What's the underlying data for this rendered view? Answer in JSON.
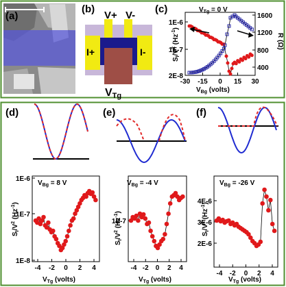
{
  "panels": {
    "a": {
      "label": "(a)"
    },
    "b": {
      "label": "(b)",
      "v_plus": "V+",
      "v_minus": "V-",
      "i_plus": "I+",
      "i_minus": "I-",
      "v_tg": "V",
      "v_tg_sub": "Tg"
    },
    "c": {
      "label": "(c)",
      "annotation": "V",
      "annotation_sub": "Tg",
      "annotation_tail": " = 0 V",
      "ylabel_left": "S",
      "ylabel_right": "R (Ω)",
      "xlabel": "V",
      "xlabel_sub": "Bg",
      "xlabel_tail": " (volts)",
      "left_ticks": [
        "1E-6",
        "1E-7",
        "2E-8"
      ],
      "right_ticks": [
        "1600",
        "1200",
        "800",
        "400"
      ],
      "x_ticks": [
        "-30",
        "-15",
        "0",
        "15",
        "30"
      ]
    },
    "d": {
      "label": "(d)",
      "annotation": "V",
      "annotation_sub": "Bg",
      "annotation_tail": " = 8 V",
      "y_ticks": [
        "1E-6",
        "1E-7",
        "1E-8"
      ],
      "x_ticks": [
        "-4",
        "-2",
        "0",
        "2",
        "4"
      ],
      "xlabel": "V",
      "xlabel_sub": "Tg",
      "xlabel_tail": " (volts)"
    },
    "e": {
      "label": "(e)",
      "annotation": "V",
      "annotation_sub": "Bg",
      "annotation_tail": " = -4 V",
      "y_ticks": [
        "1E-7"
      ],
      "x_ticks": [
        "-4",
        "-2",
        "0",
        "2",
        "4"
      ],
      "xlabel": "V",
      "xlabel_sub": "Tg",
      "xlabel_tail": " (volts)",
      "ylabel": "S"
    },
    "f": {
      "label": "(f)",
      "annotation": "V",
      "annotation_sub": "Bg",
      "annotation_tail": " = -26 V",
      "y_ticks": [
        "4E-6",
        "3E-6",
        "2E-6"
      ],
      "x_ticks": [
        "-4",
        "-2",
        "0",
        "2",
        "4"
      ],
      "xlabel": "V",
      "xlabel_sub": "Tg",
      "xlabel_tail": " (volts)",
      "ylabel": "S"
    }
  },
  "colors": {
    "data_red": "#e0191b",
    "data_blue": "#2a2aa6",
    "sine_red": "#e22b2b",
    "sine_blue": "#1f2bd1",
    "border_green": "#4f8f2f"
  }
}
